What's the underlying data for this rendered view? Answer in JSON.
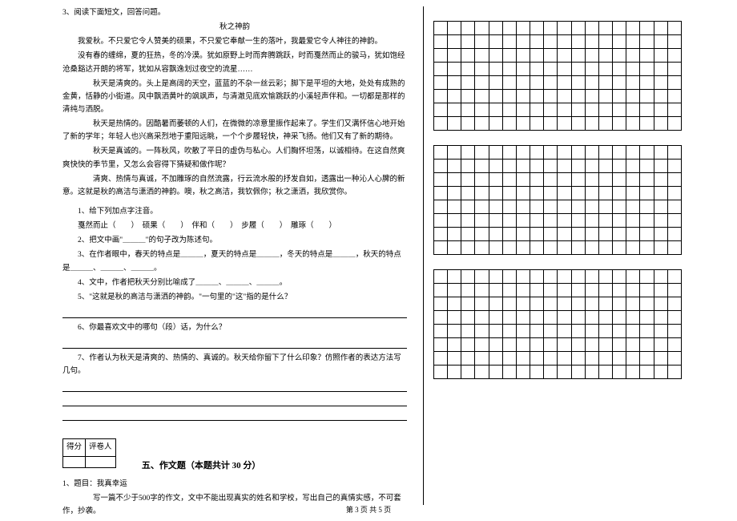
{
  "q3": {
    "prompt": "3、阅读下面短文，回答问题。",
    "title": "秋之神韵",
    "p1": "我爱秋。不只爱它令人赞美的硕果，不只爱它奉献一生的落叶，我最爱它令人神往的神韵。",
    "p2": "没有春的缠绵，夏的狂热，冬的冷漠。犹如原野上时而奔腾跳跃，时而戛然而止的骏马，犹如饱经沧桑豁达开朗的将军，犹如从容飘逸划过夜空的流星……",
    "p3": "秋天是清爽的。头上是高阔的天空，蓝蓝的不杂一丝云彩；脚下是平坦的大地，处处有成熟的金黄，恬静的小街道。风中飘洒黄叶的飒飒声，与清澈见底欢愉跳跃的小溪轻声伴和。一切都是那样的清纯与洒脱。",
    "p4": "秋天是热情的。因酷暑而萎顿的人们，在微微的凉意里振作起来了。学生们又满怀信心地开始了新的学年；年轻人也兴高采烈地于重阳远眺，一个个步履轻快，神采飞扬。他们又有了新的期待。",
    "p5": "秋天是真诚的。一阵秋风，吹散了平日的虚伪与私心。人们胸怀坦荡，以诚相待。在这自然爽爽快快的季节里，又怎么会容得下猜疑和做作呢？",
    "p6": "清爽、热情与真诚，不加雕琢的自然流露，行云流水般的抒发自如，透露出一种沁人心脾的新意。这就是秋的高洁与潇洒的神韵。噢，秋之高洁，我钦佩你；秋之潇洒，我欣赏你。",
    "sub1": "1、给下列加点字注音。",
    "sub1_items": "戛然而止（　　）　硕果（　　）　伴和（　　）　步履（　　）　雕琢（　　）",
    "sub2": "2、把文中画\"＿＿＿\"的句子改为陈述句。",
    "sub3": "3、在作者眼中，春天的特点是＿＿＿，夏天的特点是＿＿＿，冬天的特点是＿＿＿，秋天的特点是＿＿＿、＿＿＿、＿＿＿。",
    "sub4": "4、文中，作者把秋天分别比喻成了＿＿＿、＿＿＿、＿＿＿。",
    "sub5": "5、\"这就是秋的高洁与潇洒的神韵。\"一句里的\"这\"指的是什么？",
    "sub6": "6、你最喜欢文中的哪句（段）话，为什么？",
    "sub7": "7、作者认为秋天是清爽的、热情的、真诚的。秋天给你留下了什么印象？仿照作者的表达方法写几句。"
  },
  "score_box": {
    "c1": "得分",
    "c2": "评卷人"
  },
  "section5": {
    "title": "五、作文题（本题共计 30 分）",
    "q1_label": "1、题目：我真幸运",
    "q1_body1": "写一篇不少于500字的作文，文中不能出现真实的姓名和学校，写出自己的真情实感，不可套作，抄袭。"
  },
  "grid": {
    "blocks": 3,
    "rows": 8,
    "cols": 18
  },
  "footer": "第 3 页 共 5 页"
}
